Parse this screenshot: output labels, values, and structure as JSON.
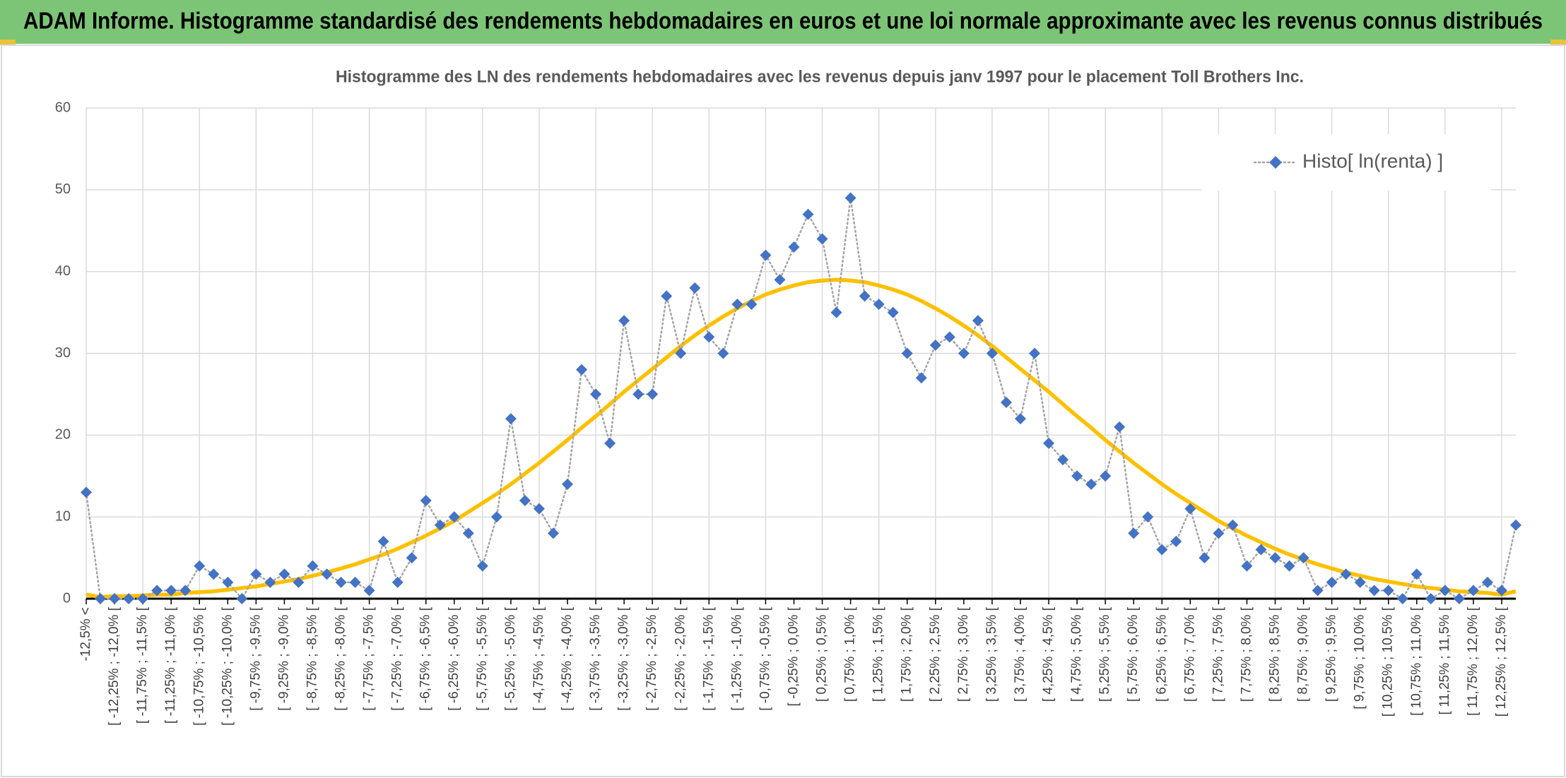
{
  "header": {
    "title": "ADAM Informe. Histogramme standardisé des rendements hebdomadaires en euros et une loi normale approximante avec les revenus connus distribués"
  },
  "chart_data": {
    "type": "line",
    "title": "Histogramme des LN des rendements hebdomadaires avec les revenus depuis janv 1997 pour le placement Toll Brothers Inc.",
    "categories": [
      "-12,5% <",
      null,
      "[ -12,25% ; -12,0% [",
      null,
      "[ -11,75% ; -11,5% [",
      null,
      "[ -11,25% ; -11,0% [",
      null,
      "[ -10,75% ; -10,5% [",
      null,
      "[ -10,25% ; -10,0% [",
      null,
      "[ -9,75% ; -9,5% [",
      null,
      "[ -9,25% ; -9,0% [",
      null,
      "[ -8,75% ; -8,5% [",
      null,
      "[ -8,25% ; -8,0% [",
      null,
      "[ -7,75% ; -7,5% [",
      null,
      "[ -7,25% ; -7,0% [",
      null,
      "[ -6,75% ; -6,5% [",
      null,
      "[ -6,25% ; -6,0% [",
      null,
      "[ -5,75% ; -5,5% [",
      null,
      "[ -5,25% ; -5,0% [",
      null,
      "[ -4,75% ; -4,5% [",
      null,
      "[ -4,25% ; -4,0% [",
      null,
      "[ -3,75% ; -3,5% [",
      null,
      "[ -3,25% ; -3,0% [",
      null,
      "[ -2,75% ; -2,5% [",
      null,
      "[ -2,25% ; -2,0% [",
      null,
      "[ -1,75% ; -1,5% [",
      null,
      "[ -1,25% ; -1,0% [",
      null,
      "[ -0,75% ; -0,5% [",
      null,
      "[ -0,25% ; 0,0% [",
      null,
      "[ 0,25% ; 0,5% [",
      null,
      "[ 0,75% ; 1,0% [",
      null,
      "[ 1,25% ; 1,5% [",
      null,
      "[ 1,75% ; 2,0% [",
      null,
      "[ 2,25% ; 2,5% [",
      null,
      "[ 2,75% ; 3,0% [",
      null,
      "[ 3,25% ; 3,5% [",
      null,
      "[ 3,75% ; 4,0% [",
      null,
      "[ 4,25% ; 4,5% [",
      null,
      "[ 4,75% ; 5,0% [",
      null,
      "[ 5,25% ; 5,5% [",
      null,
      "[ 5,75% ; 6,0% [",
      null,
      "[ 6,25% ; 6,5% [",
      null,
      "[ 6,75% ; 7,0% [",
      null,
      "[ 7,25% ; 7,5% [",
      null,
      "[ 7,75% ; 8,0% [",
      null,
      "[ 8,25% ; 8,5% [",
      null,
      "[ 8,75% ; 9,0% [",
      null,
      "[ 9,25% ; 9,5% [",
      null,
      "[ 9,75% ; 10,0% [",
      null,
      "[ 10,25% ; 10,5% [",
      null,
      "[ 10,75% ; 11,0% [",
      null,
      "[ 11,25% ; 11,5% [",
      null,
      "[ 11,75% ; 12,0% [",
      null,
      "[ 12,25% ; 12,5% [",
      null
    ],
    "series": [
      {
        "name": "Histo[ ln(renta) ]",
        "color": "#4472c4",
        "line_color": "#a5a5a5",
        "marker": "diamond",
        "values": [
          13,
          0,
          0,
          0,
          0,
          1,
          1,
          1,
          4,
          3,
          2,
          0,
          3,
          2,
          3,
          2,
          4,
          3,
          2,
          2,
          1,
          7,
          2,
          5,
          12,
          9,
          10,
          8,
          4,
          10,
          22,
          12,
          11,
          8,
          14,
          28,
          25,
          19,
          34,
          25,
          25,
          37,
          30,
          38,
          32,
          30,
          36,
          36,
          42,
          39,
          43,
          47,
          44,
          35,
          49,
          37,
          36,
          35,
          30,
          27,
          31,
          32,
          30,
          34,
          30,
          24,
          22,
          30,
          19,
          17,
          15,
          14,
          15,
          21,
          8,
          10,
          6,
          7,
          11,
          5,
          8,
          9,
          4,
          6,
          5,
          4,
          5,
          1,
          2,
          3,
          2,
          1,
          1,
          0,
          3,
          0,
          1,
          0,
          1,
          2,
          1,
          9
        ]
      },
      {
        "color": "#ffc000",
        "marker": "none",
        "values": [
          0.5,
          0.2,
          0.3,
          0.3,
          0.4,
          0.5,
          0.5,
          0.7,
          0.8,
          0.9,
          1.1,
          1.3,
          1.5,
          1.8,
          2.1,
          2.4,
          2.8,
          3.2,
          3.7,
          4.2,
          4.8,
          5.4,
          6.1,
          6.9,
          7.7,
          8.6,
          9.5,
          10.6,
          11.7,
          12.8,
          14.0,
          15.3,
          16.6,
          18.0,
          19.4,
          20.9,
          22.3,
          23.8,
          25.3,
          26.7,
          28.1,
          29.5,
          30.9,
          32.2,
          33.4,
          34.5,
          35.5,
          36.4,
          37.2,
          37.8,
          38.3,
          38.7,
          38.9,
          39,
          38.9,
          38.7,
          38.3,
          37.8,
          37.2,
          36.4,
          35.5,
          34.5,
          33.4,
          32.2,
          30.9,
          29.5,
          28.1,
          26.7,
          25.3,
          23.8,
          22.3,
          20.9,
          19.4,
          18.0,
          16.6,
          15.3,
          14.0,
          12.8,
          11.7,
          10.6,
          9.5,
          8.6,
          7.7,
          6.9,
          6.1,
          5.4,
          4.8,
          4.2,
          3.7,
          3.2,
          2.8,
          2.4,
          2.1,
          1.8,
          1.5,
          1.3,
          1.1,
          0.9,
          0.8,
          0.7,
          0.5,
          0.9
        ]
      }
    ],
    "ylim": [
      0,
      60
    ],
    "yticks": [
      0,
      10,
      20,
      30,
      40,
      50,
      60
    ],
    "grid": true,
    "legend": "top-right"
  }
}
